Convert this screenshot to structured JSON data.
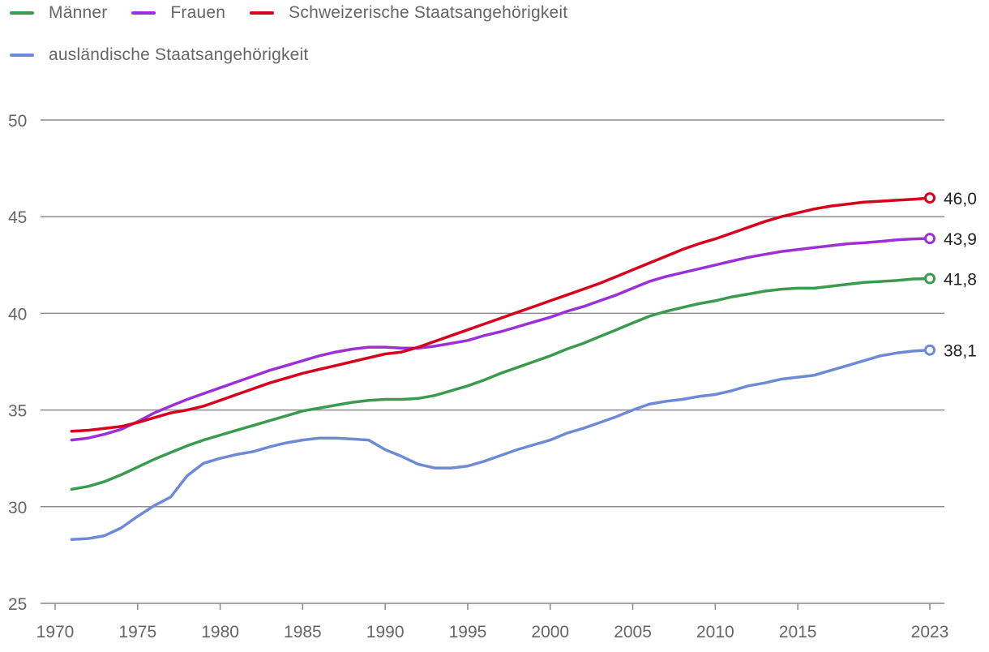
{
  "chart_data": {
    "type": "line",
    "title": "",
    "xlabel": "",
    "ylabel": "",
    "ylim": [
      25,
      50
    ],
    "xlim": [
      1970,
      2023
    ],
    "y_ticks": [
      25,
      30,
      35,
      40,
      45,
      50
    ],
    "x_ticks": [
      1970,
      1975,
      1980,
      1985,
      1990,
      1995,
      2000,
      2005,
      2010,
      2015,
      2023
    ],
    "x_tick_labels": [
      "1970",
      "1975",
      "1980",
      "1985",
      "1990",
      "1995",
      "2000",
      "2005",
      "2010",
      "2015",
      "2023"
    ],
    "y_tick_labels": [
      "25",
      "30",
      "35",
      "40",
      "45",
      "50"
    ],
    "grid": "horizontal",
    "legend_position": "top-left",
    "x": [
      1971,
      1972,
      1973,
      1974,
      1975,
      1976,
      1977,
      1978,
      1979,
      1980,
      1981,
      1982,
      1983,
      1984,
      1985,
      1986,
      1987,
      1988,
      1989,
      1990,
      1991,
      1992,
      1993,
      1994,
      1995,
      1996,
      1997,
      1998,
      1999,
      2000,
      2001,
      2002,
      2003,
      2004,
      2005,
      2006,
      2007,
      2008,
      2009,
      2010,
      2011,
      2012,
      2013,
      2014,
      2015,
      2016,
      2017,
      2018,
      2019,
      2020,
      2021,
      2022,
      2023
    ],
    "series": [
      {
        "name": "Männer",
        "color": "#3a9a4e",
        "end_label": "41,8",
        "values": [
          30.9,
          31.05,
          31.3,
          31.65,
          32.05,
          32.45,
          32.8,
          33.15,
          33.45,
          33.7,
          33.95,
          34.2,
          34.45,
          34.7,
          34.95,
          35.1,
          35.25,
          35.4,
          35.5,
          35.55,
          35.55,
          35.6,
          35.75,
          36.0,
          36.25,
          36.55,
          36.9,
          37.2,
          37.5,
          37.8,
          38.15,
          38.45,
          38.8,
          39.15,
          39.5,
          39.85,
          40.1,
          40.3,
          40.5,
          40.65,
          40.85,
          41.0,
          41.15,
          41.25,
          41.3,
          41.3,
          41.4,
          41.5,
          41.6,
          41.65,
          41.7,
          41.78,
          41.8
        ]
      },
      {
        "name": "Frauen",
        "color": "#9b30d9",
        "end_label": "43,9",
        "values": [
          33.45,
          33.55,
          33.75,
          34.0,
          34.4,
          34.85,
          35.2,
          35.55,
          35.85,
          36.15,
          36.45,
          36.75,
          37.05,
          37.3,
          37.55,
          37.8,
          38.0,
          38.15,
          38.25,
          38.25,
          38.2,
          38.2,
          38.3,
          38.45,
          38.6,
          38.85,
          39.05,
          39.3,
          39.55,
          39.8,
          40.1,
          40.35,
          40.65,
          40.95,
          41.3,
          41.65,
          41.9,
          42.1,
          42.3,
          42.5,
          42.7,
          42.9,
          43.05,
          43.2,
          43.3,
          43.4,
          43.5,
          43.6,
          43.65,
          43.72,
          43.8,
          43.85,
          43.87
        ]
      },
      {
        "name": "Schweizerische Staatsangehörigkeit",
        "color": "#d6001c",
        "end_label": "46,0",
        "values": [
          33.9,
          33.95,
          34.05,
          34.15,
          34.35,
          34.6,
          34.85,
          35.0,
          35.2,
          35.5,
          35.8,
          36.1,
          36.4,
          36.65,
          36.9,
          37.1,
          37.3,
          37.5,
          37.7,
          37.9,
          38.0,
          38.25,
          38.55,
          38.85,
          39.15,
          39.45,
          39.75,
          40.05,
          40.35,
          40.65,
          40.95,
          41.25,
          41.55,
          41.9,
          42.25,
          42.6,
          42.95,
          43.3,
          43.6,
          43.85,
          44.15,
          44.45,
          44.75,
          45.0,
          45.2,
          45.4,
          45.55,
          45.65,
          45.75,
          45.8,
          45.85,
          45.9,
          45.97
        ]
      },
      {
        "name": "ausländische Staatsangehörigkeit",
        "color": "#6e8ad6",
        "end_label": "38,1",
        "values": [
          28.3,
          28.35,
          28.5,
          28.9,
          29.5,
          30.05,
          30.5,
          31.6,
          32.25,
          32.5,
          32.7,
          32.85,
          33.1,
          33.3,
          33.45,
          33.55,
          33.55,
          33.5,
          33.45,
          32.95,
          32.6,
          32.2,
          32.0,
          32.0,
          32.1,
          32.35,
          32.65,
          32.95,
          33.2,
          33.45,
          33.8,
          34.05,
          34.35,
          34.65,
          35.0,
          35.3,
          35.45,
          35.55,
          35.7,
          35.8,
          36.0,
          36.25,
          36.4,
          36.6,
          36.7,
          36.8,
          37.05,
          37.3,
          37.55,
          37.8,
          37.95,
          38.05,
          38.1
        ]
      }
    ]
  }
}
